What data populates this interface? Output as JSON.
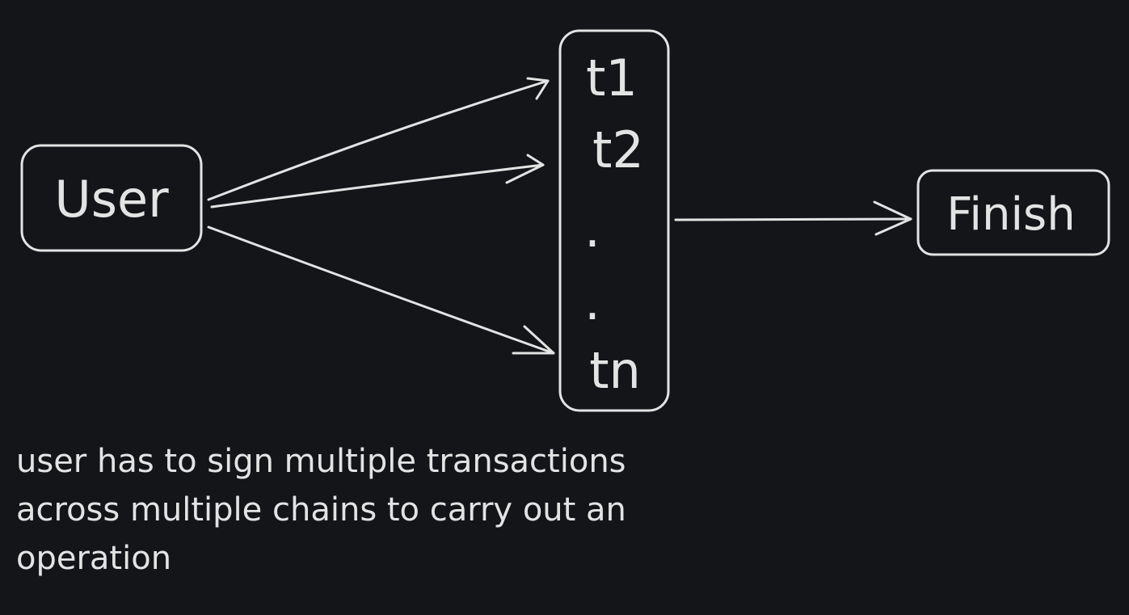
{
  "diagram": {
    "source_node": {
      "label": "User"
    },
    "transactions_node": {
      "items": [
        "t1",
        "t2",
        ".",
        ".",
        "tn"
      ]
    },
    "target_node": {
      "label": "Finish"
    },
    "caption_lines": [
      "user has to sign multiple transactions",
      "across multiple chains to carry out an",
      "operation"
    ],
    "colors": {
      "background": "#131519",
      "stroke": "#e3e3e3"
    }
  }
}
